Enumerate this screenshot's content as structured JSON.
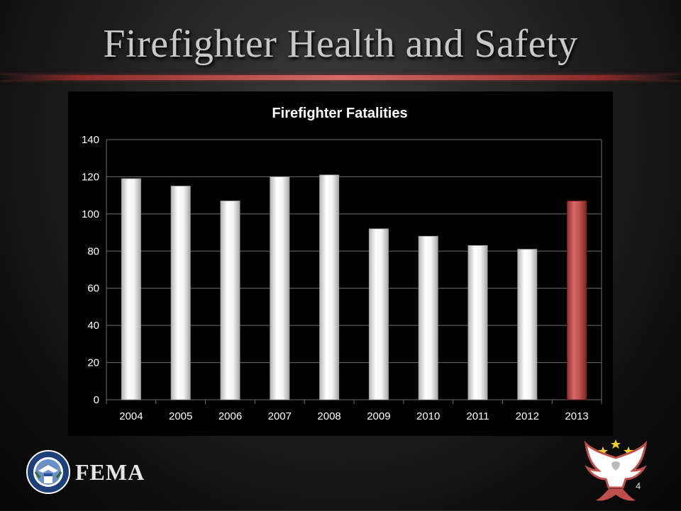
{
  "slide": {
    "title": "Firefighter Health and Safety",
    "page_number": "4",
    "agency_name": "FEMA"
  },
  "colors": {
    "accent_red": "#c0504d",
    "bar_white": "#f2f2f2",
    "title_rule": "#d66a6a"
  },
  "chart_data": {
    "type": "bar",
    "title": "Firefighter Fatalities",
    "categories": [
      "2004",
      "2005",
      "2006",
      "2007",
      "2008",
      "2009",
      "2010",
      "2011",
      "2012",
      "2013"
    ],
    "values": [
      119,
      115,
      107,
      120,
      121,
      92,
      88,
      83,
      81,
      107
    ],
    "highlight": [
      "2013"
    ],
    "xlabel": "",
    "ylabel": "",
    "ylim": [
      0,
      140
    ],
    "yticks": [
      0,
      20,
      40,
      60,
      80,
      100,
      120,
      140
    ],
    "grid": true,
    "legend": "none"
  }
}
